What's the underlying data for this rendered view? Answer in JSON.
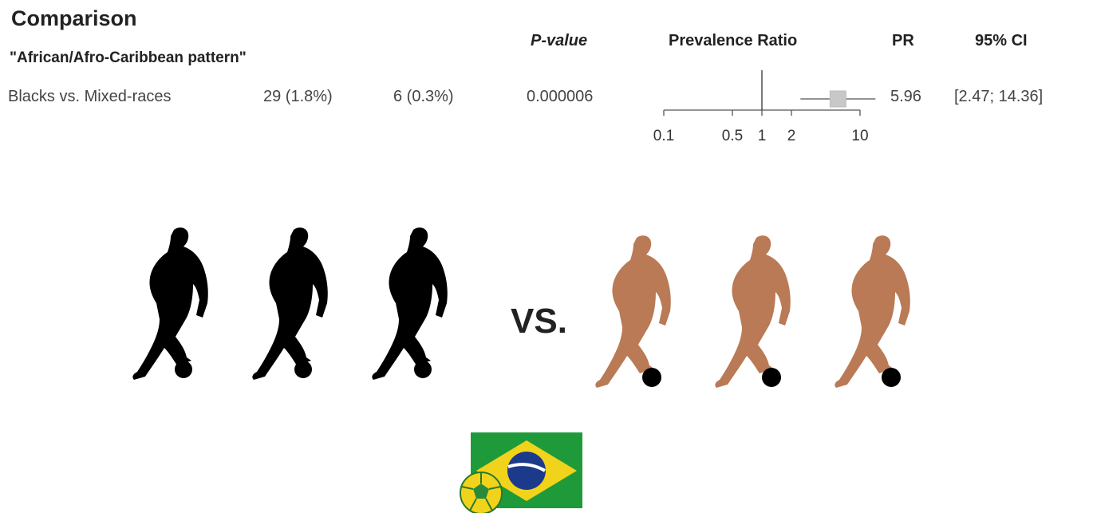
{
  "header": {
    "title": "Comparison",
    "subtitle": "\"African/Afro-Caribbean pattern\"",
    "p_value_label": "P-value",
    "prevalence_ratio_label": "Prevalence Ratio",
    "pr_label": "PR",
    "ci_label": "95% CI"
  },
  "row": {
    "label": "Blacks vs. Mixed-races",
    "group1": "29 (1.8%)",
    "group2": "6 (0.3%)",
    "p_value": "0.000006",
    "pr": "5.96",
    "ci": "[2.47; 14.36]"
  },
  "illustration": {
    "vs_label": "VS.",
    "group1_color": "#000000",
    "group2_color": "#b97a55",
    "flag_green": "#1f9a3a",
    "flag_yellow": "#f2d31b",
    "flag_blue": "#1c3a8c"
  },
  "chart_data": {
    "type": "forest",
    "scale": "log",
    "x_ticks": [
      0.1,
      0.5,
      1,
      2,
      10
    ],
    "x_tick_labels": [
      "0.1",
      "0.5",
      "1",
      "2",
      "10"
    ],
    "xlim": [
      0.1,
      10
    ],
    "reference_line": 1,
    "estimates": [
      {
        "label": "Blacks vs. Mixed-races",
        "pr": 5.96,
        "ci_low": 2.47,
        "ci_high": 14.36
      }
    ]
  }
}
